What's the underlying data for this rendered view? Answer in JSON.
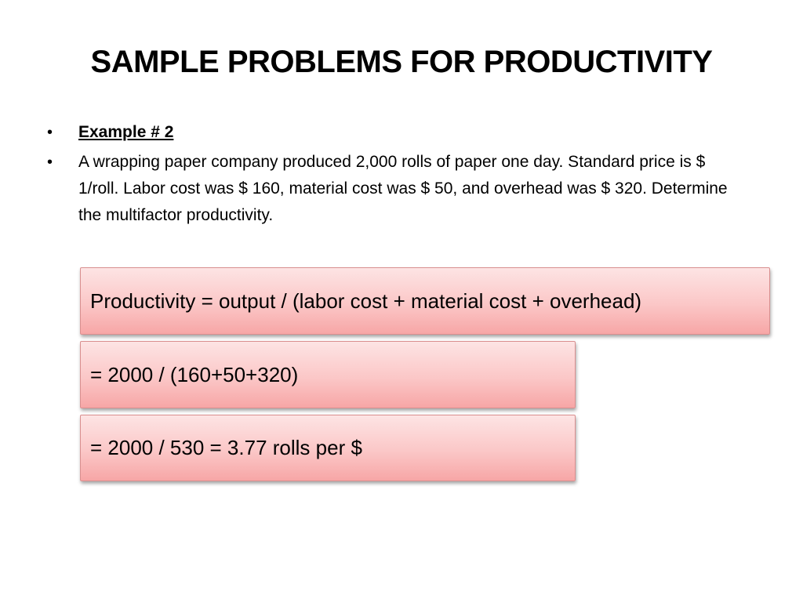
{
  "slide": {
    "title": "SAMPLE PROBLEMS FOR PRODUCTIVITY",
    "bullet_symbol": "•",
    "bullets": [
      {
        "text": "Example # 2",
        "style": "bold-underline"
      },
      {
        "text": "A wrapping paper company produced 2,000 rolls of paper one day. Standard price is $ 1/roll. Labor cost was $ 160, material cost was $ 50, and overhead was $ 320. Determine the multifactor productivity."
      }
    ],
    "formula_boxes": [
      "Productivity = output / (labor cost + material cost + overhead)",
      "= 2000 / (160+50+320)",
      "= 2000 / 530 = 3.77 rolls per $"
    ]
  },
  "colors": {
    "box_fill_top": "#fde4e4",
    "box_fill_bottom": "#f7a6a6",
    "box_border": "#d98f8f",
    "text": "#000000",
    "background": "#ffffff"
  }
}
